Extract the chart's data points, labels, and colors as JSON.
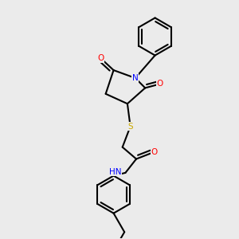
{
  "bg_color": "#ebebeb",
  "bond_width": 1.5,
  "atom_colors": {
    "O": "#ff0000",
    "N": "#0000ff",
    "S": "#ccaa00",
    "H": "#4a9090"
  },
  "font_size": 7.5
}
